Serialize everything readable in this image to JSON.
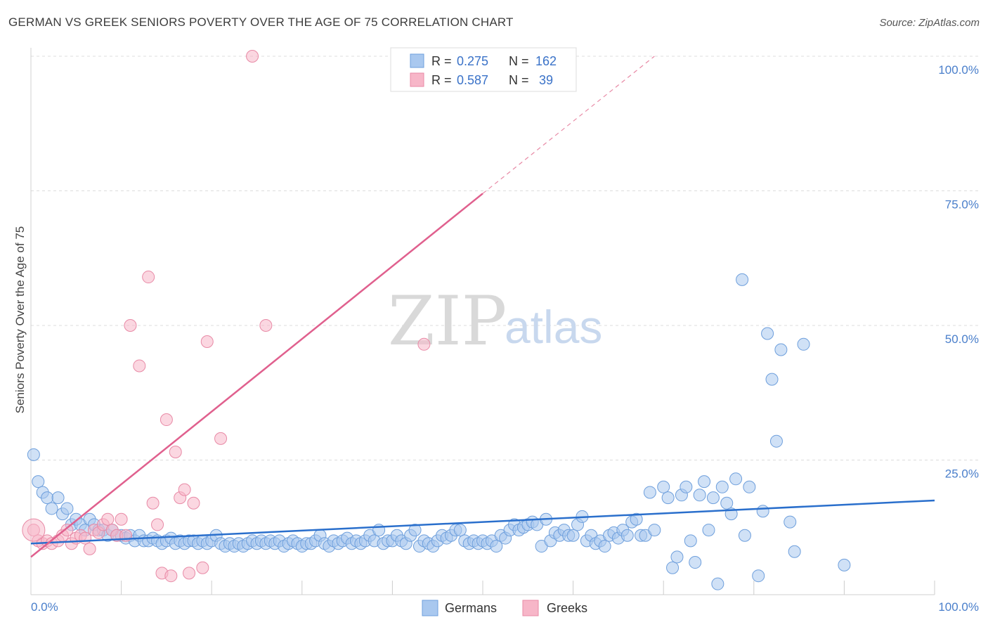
{
  "title": "GERMAN VS GREEK SENIORS POVERTY OVER THE AGE OF 75 CORRELATION CHART",
  "source": "Source: ZipAtlas.com",
  "watermark": {
    "zip": "ZIP",
    "atlas": "atlas"
  },
  "legend": {
    "r_label": "R =",
    "n_label": "N =",
    "germans": {
      "r": "0.275",
      "n": "162"
    },
    "greeks": {
      "r": "0.587",
      "n": " 39"
    }
  },
  "bottom_legend": {
    "germans": "Germans",
    "greeks": "Greeks"
  },
  "colors": {
    "german_fill": "#a9c8ef",
    "german_stroke": "#6e9fdc",
    "german_line": "#2a6fcc",
    "greek_fill": "#f7b6c8",
    "greek_stroke": "#e88aa6",
    "greek_line": "#e0608e"
  },
  "chart_data": {
    "type": "scatter",
    "title": "GERMAN VS GREEK SENIORS POVERTY OVER THE AGE OF 75 CORRELATION CHART",
    "xlabel": "",
    "ylabel": "Seniors Poverty Over the Age of 75",
    "xlim": [
      0,
      100
    ],
    "ylim": [
      0,
      100
    ],
    "x_tick_labels": [
      "0.0%",
      "100.0%"
    ],
    "y_tick_labels": [
      "100.0%",
      "75.0%",
      "50.0%",
      "25.0%"
    ],
    "y_ticks": [
      100,
      75,
      50,
      25
    ],
    "series": [
      {
        "name": "Germans",
        "r": 0.275,
        "n": 162,
        "trend": {
          "x": [
            0,
            100
          ],
          "y": [
            9.5,
            17.5
          ]
        },
        "points": [
          [
            0.3,
            26
          ],
          [
            0.8,
            21
          ],
          [
            1.3,
            19
          ],
          [
            1.8,
            18
          ],
          [
            2.3,
            16
          ],
          [
            3.0,
            18
          ],
          [
            3.5,
            15
          ],
          [
            4.0,
            16
          ],
          [
            4.5,
            13
          ],
          [
            5.0,
            14
          ],
          [
            5.5,
            13
          ],
          [
            6.0,
            12
          ],
          [
            6.5,
            14
          ],
          [
            7.0,
            13
          ],
          [
            7.5,
            12
          ],
          [
            8.0,
            12
          ],
          [
            8.5,
            11
          ],
          [
            9.0,
            12
          ],
          [
            9.5,
            11
          ],
          [
            10.0,
            11
          ],
          [
            10.5,
            10.5
          ],
          [
            11.0,
            11
          ],
          [
            11.5,
            10
          ],
          [
            12.0,
            11
          ],
          [
            12.5,
            10
          ],
          [
            13.0,
            10
          ],
          [
            13.5,
            10.5
          ],
          [
            14.0,
            10
          ],
          [
            14.5,
            9.5
          ],
          [
            15.0,
            10
          ],
          [
            15.5,
            10.5
          ],
          [
            16.0,
            9.5
          ],
          [
            16.5,
            10
          ],
          [
            17.0,
            9.5
          ],
          [
            17.5,
            10
          ],
          [
            18.0,
            10
          ],
          [
            18.5,
            9.5
          ],
          [
            19.0,
            10
          ],
          [
            19.5,
            9.5
          ],
          [
            20.0,
            10
          ],
          [
            20.5,
            11
          ],
          [
            21.0,
            9.5
          ],
          [
            21.5,
            9
          ],
          [
            22.0,
            9.5
          ],
          [
            22.5,
            9
          ],
          [
            23.0,
            9.5
          ],
          [
            23.5,
            9
          ],
          [
            24.0,
            9.5
          ],
          [
            24.5,
            10
          ],
          [
            25.0,
            9.5
          ],
          [
            25.5,
            10
          ],
          [
            26.0,
            9.5
          ],
          [
            26.5,
            10
          ],
          [
            27.0,
            9.5
          ],
          [
            27.5,
            10
          ],
          [
            28.0,
            9
          ],
          [
            28.5,
            9.5
          ],
          [
            29.0,
            10
          ],
          [
            29.5,
            9.5
          ],
          [
            30.0,
            9
          ],
          [
            30.5,
            9.5
          ],
          [
            31.0,
            9.5
          ],
          [
            31.5,
            10
          ],
          [
            32.0,
            11
          ],
          [
            32.5,
            9.5
          ],
          [
            33.0,
            9
          ],
          [
            33.5,
            10
          ],
          [
            34.0,
            9.5
          ],
          [
            34.5,
            10
          ],
          [
            35.0,
            10.5
          ],
          [
            35.5,
            9.5
          ],
          [
            36.0,
            10
          ],
          [
            36.5,
            9.5
          ],
          [
            37.0,
            10
          ],
          [
            37.5,
            11
          ],
          [
            38.0,
            10
          ],
          [
            38.5,
            12
          ],
          [
            39.0,
            9.5
          ],
          [
            39.5,
            10
          ],
          [
            40.0,
            10
          ],
          [
            40.5,
            11
          ],
          [
            41.0,
            10
          ],
          [
            41.5,
            9.5
          ],
          [
            42.0,
            11
          ],
          [
            42.5,
            12
          ],
          [
            43.0,
            9
          ],
          [
            43.5,
            10
          ],
          [
            44.0,
            9.5
          ],
          [
            44.5,
            9
          ],
          [
            45.0,
            10
          ],
          [
            45.5,
            11
          ],
          [
            46.0,
            10.5
          ],
          [
            46.5,
            11
          ],
          [
            47.0,
            12
          ],
          [
            47.5,
            12
          ],
          [
            48.0,
            10
          ],
          [
            48.5,
            9.5
          ],
          [
            49.0,
            10
          ],
          [
            49.5,
            9.5
          ],
          [
            50.0,
            10
          ],
          [
            50.5,
            9.5
          ],
          [
            51.0,
            10
          ],
          [
            51.5,
            9
          ],
          [
            52.0,
            11
          ],
          [
            52.5,
            10.5
          ],
          [
            53.0,
            12
          ],
          [
            53.5,
            13
          ],
          [
            54.0,
            12
          ],
          [
            54.5,
            12.5
          ],
          [
            55.0,
            13
          ],
          [
            55.5,
            13.5
          ],
          [
            56.0,
            13
          ],
          [
            56.5,
            9
          ],
          [
            57.0,
            14
          ],
          [
            57.5,
            10
          ],
          [
            58.0,
            11.5
          ],
          [
            58.5,
            11
          ],
          [
            59.0,
            12
          ],
          [
            59.5,
            11
          ],
          [
            60.0,
            11
          ],
          [
            60.5,
            13
          ],
          [
            61.0,
            14.5
          ],
          [
            61.5,
            10
          ],
          [
            62.0,
            11
          ],
          [
            62.5,
            9.5
          ],
          [
            63.0,
            10
          ],
          [
            63.5,
            9
          ],
          [
            64.0,
            11
          ],
          [
            64.5,
            11.5
          ],
          [
            65.0,
            10.5
          ],
          [
            65.5,
            12
          ],
          [
            66.0,
            11
          ],
          [
            66.5,
            13.5
          ],
          [
            67.0,
            14
          ],
          [
            67.5,
            11
          ],
          [
            68.0,
            11
          ],
          [
            68.5,
            19
          ],
          [
            69.0,
            12
          ],
          [
            70.0,
            20
          ],
          [
            70.5,
            18
          ],
          [
            71.0,
            5
          ],
          [
            71.5,
            7
          ],
          [
            72.0,
            18.5
          ],
          [
            72.5,
            20
          ],
          [
            73.0,
            10
          ],
          [
            73.5,
            6
          ],
          [
            74.0,
            18.5
          ],
          [
            74.5,
            21
          ],
          [
            75.0,
            12
          ],
          [
            75.5,
            18
          ],
          [
            76.0,
            2
          ],
          [
            76.5,
            20
          ],
          [
            77.0,
            17
          ],
          [
            77.5,
            15
          ],
          [
            78.0,
            21.5
          ],
          [
            79.0,
            11
          ],
          [
            79.5,
            20
          ],
          [
            80.5,
            3.5
          ],
          [
            81.0,
            15.5
          ],
          [
            81.5,
            48.5
          ],
          [
            82.0,
            40
          ],
          [
            82.5,
            28.5
          ],
          [
            83.0,
            45.5
          ],
          [
            84.0,
            13.5
          ],
          [
            84.5,
            8
          ],
          [
            85.5,
            46.5
          ],
          [
            78.7,
            58.5
          ],
          [
            90,
            5.5
          ]
        ]
      },
      {
        "name": "Greeks",
        "r": 0.587,
        "n": 39,
        "trend": {
          "x": [
            0,
            50
          ],
          "y": [
            7,
            74.5
          ]
        },
        "trend_extension": {
          "x": [
            50,
            69
          ],
          "y": [
            74.5,
            100
          ]
        },
        "points": [
          [
            0.3,
            12
          ],
          [
            0.8,
            10
          ],
          [
            1.3,
            9.5
          ],
          [
            1.8,
            10
          ],
          [
            2.3,
            9.5
          ],
          [
            3.0,
            10
          ],
          [
            3.5,
            11
          ],
          [
            4.0,
            12
          ],
          [
            4.5,
            9.5
          ],
          [
            5.0,
            10.5
          ],
          [
            5.5,
            11
          ],
          [
            6.0,
            10.5
          ],
          [
            6.5,
            8.5
          ],
          [
            7.0,
            12
          ],
          [
            7.5,
            11.5
          ],
          [
            8.0,
            13
          ],
          [
            8.5,
            14
          ],
          [
            9.0,
            12
          ],
          [
            9.5,
            11
          ],
          [
            10.0,
            14
          ],
          [
            10.5,
            11
          ],
          [
            11.0,
            50
          ],
          [
            12.0,
            42.5
          ],
          [
            13.0,
            59
          ],
          [
            13.5,
            17
          ],
          [
            14.0,
            13
          ],
          [
            14.5,
            4
          ],
          [
            15.0,
            32.5
          ],
          [
            15.5,
            3.5
          ],
          [
            16.0,
            26.5
          ],
          [
            16.5,
            18
          ],
          [
            17.0,
            19.5
          ],
          [
            17.5,
            4
          ],
          [
            18.0,
            17
          ],
          [
            19.0,
            5
          ],
          [
            19.5,
            47
          ],
          [
            21.0,
            29
          ],
          [
            24.5,
            100
          ],
          [
            26.0,
            50
          ],
          [
            43.5,
            46.5
          ]
        ]
      }
    ]
  }
}
